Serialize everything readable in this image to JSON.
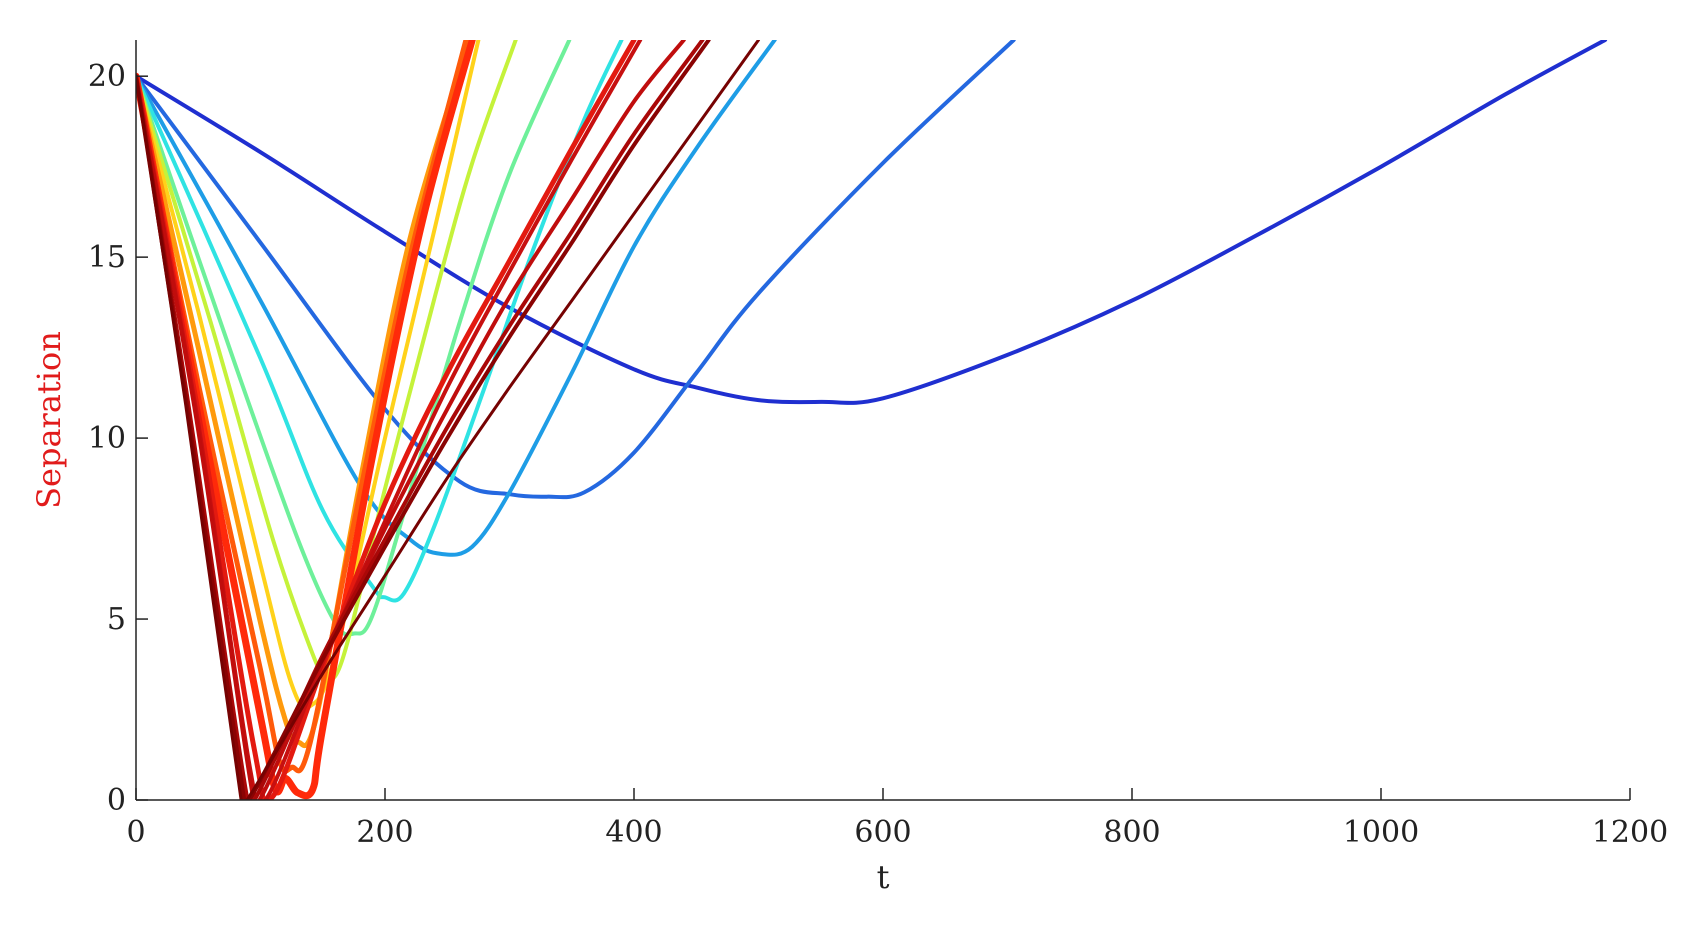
{
  "chart_data": {
    "type": "line",
    "title": "",
    "xlabel": "t",
    "ylabel": "Separation",
    "ylabel_color": "#e11b1b",
    "xlim": [
      0,
      1200
    ],
    "ylim": [
      0,
      21
    ],
    "xticks": [
      0,
      200,
      400,
      600,
      800,
      1000,
      1200
    ],
    "yticks": [
      0,
      5,
      10,
      15,
      20
    ],
    "grid": false,
    "legend": "none",
    "series": [
      {
        "color": "#1f2fd0",
        "width": 4,
        "x": [
          0,
          100,
          200,
          300,
          400,
          450,
          500,
          550,
          600,
          700,
          800,
          900,
          1000,
          1100,
          1180
        ],
        "y": [
          20,
          17.9,
          15.7,
          13.6,
          11.9,
          11.4,
          11.05,
          11.0,
          11.1,
          12.3,
          13.8,
          15.6,
          17.5,
          19.5,
          21
        ]
      },
      {
        "color": "#2468e0",
        "width": 4,
        "x": [
          0,
          100,
          200,
          260,
          300,
          330,
          360,
          400,
          450,
          500,
          600,
          705
        ],
        "y": [
          20,
          15.4,
          10.8,
          8.8,
          8.45,
          8.38,
          8.5,
          9.6,
          11.8,
          14.0,
          17.6,
          21
        ]
      },
      {
        "color": "#1e9de6",
        "width": 4,
        "x": [
          0,
          100,
          180,
          220,
          245,
          270,
          300,
          350,
          400,
          450,
          513
        ],
        "y": [
          20,
          13.8,
          8.7,
          7.2,
          6.8,
          7.0,
          8.5,
          11.8,
          15.3,
          18.0,
          21
        ]
      },
      {
        "color": "#2fe3e3",
        "width": 4,
        "x": [
          0,
          100,
          150,
          190,
          200,
          215,
          240,
          280,
          320,
          360,
          390
        ],
        "y": [
          20,
          12.2,
          8.0,
          5.9,
          5.6,
          5.7,
          7.6,
          11.4,
          15.3,
          18.8,
          21
        ]
      },
      {
        "color": "#6ef09a",
        "width": 4,
        "x": [
          0,
          80,
          130,
          160,
          175,
          190,
          220,
          260,
          300,
          348
        ],
        "y": [
          20,
          12.0,
          7.2,
          4.9,
          4.6,
          5.1,
          8.5,
          13.2,
          17.3,
          21
        ]
      },
      {
        "color": "#c5f23a",
        "width": 4,
        "x": [
          0,
          60,
          110,
          140,
          150,
          165,
          200,
          240,
          270,
          305
        ],
        "y": [
          20,
          13.2,
          7.2,
          4.2,
          3.6,
          3.8,
          8.6,
          13.9,
          17.6,
          21
        ]
      },
      {
        "color": "#ffd21a",
        "width": 4,
        "x": [
          0,
          50,
          100,
          125,
          140,
          160,
          200,
          240,
          275
        ],
        "y": [
          20,
          13.5,
          6.5,
          3.2,
          2.6,
          4.0,
          10.0,
          15.8,
          21
        ]
      },
      {
        "color": "#ff9a0c",
        "width": 5,
        "x": [
          0,
          50,
          100,
          120,
          130,
          145,
          180,
          220,
          268
        ],
        "y": [
          20,
          12.5,
          4.9,
          2.2,
          1.6,
          2.3,
          8.8,
          15.5,
          21
        ]
      },
      {
        "color": "#ff5a0a",
        "width": 5,
        "x": [
          0,
          50,
          100,
          115,
          125,
          140,
          180,
          220,
          265
        ],
        "y": [
          20,
          11.5,
          3.6,
          1.1,
          0.9,
          1.6,
          8.5,
          15.0,
          21
        ]
      },
      {
        "color": "#ff2a0a",
        "width": 7,
        "x": [
          0,
          50,
          100,
          112,
          120,
          130,
          142,
          150,
          190,
          230,
          270
        ],
        "y": [
          20,
          11.0,
          2.3,
          0.3,
          0.6,
          0.2,
          0.3,
          2.0,
          9.5,
          16.0,
          21
        ]
      },
      {
        "color": "#e31a10",
        "width": 5,
        "x": [
          0,
          50,
          95,
          110,
          150,
          200,
          250,
          300,
          350,
          400
        ],
        "y": [
          20,
          10.7,
          1.4,
          0.1,
          3.7,
          8.2,
          11.8,
          14.9,
          18.0,
          21
        ]
      },
      {
        "color": "#c71010",
        "width": 4,
        "x": [
          0,
          50,
          92,
          105,
          150,
          200,
          250,
          300,
          350,
          405
        ],
        "y": [
          20,
          10.4,
          0.8,
          0.05,
          3.8,
          7.7,
          11.4,
          14.6,
          17.7,
          21
        ]
      },
      {
        "color": "#c00d0d",
        "width": 4,
        "x": [
          0,
          50,
          92,
          100,
          150,
          200,
          250,
          300,
          350,
          400,
          440
        ],
        "y": [
          20,
          10.2,
          0.5,
          0.05,
          3.9,
          7.5,
          10.8,
          13.9,
          16.6,
          19.3,
          21
        ]
      },
      {
        "color": "#aa0808",
        "width": 4,
        "x": [
          0,
          40,
          88,
          96,
          150,
          200,
          250,
          300,
          350,
          400,
          455
        ],
        "y": [
          20,
          11.4,
          0.3,
          0.05,
          4.0,
          7.2,
          10.3,
          13.1,
          15.7,
          18.4,
          21
        ]
      },
      {
        "color": "#8a0303",
        "width": 4,
        "x": [
          0,
          40,
          86,
          92,
          150,
          200,
          250,
          300,
          350,
          400,
          460
        ],
        "y": [
          20,
          11.1,
          0.2,
          0.05,
          3.9,
          7.0,
          10.0,
          12.8,
          15.4,
          18.1,
          21
        ]
      },
      {
        "color": "#760202",
        "width": 3,
        "x": [
          0,
          40,
          84,
          90,
          150,
          200,
          250,
          300,
          350,
          400,
          450,
          500
        ],
        "y": [
          20,
          10.9,
          0.1,
          0.05,
          3.5,
          6.2,
          8.9,
          11.4,
          13.8,
          16.2,
          18.6,
          21
        ]
      }
    ]
  }
}
